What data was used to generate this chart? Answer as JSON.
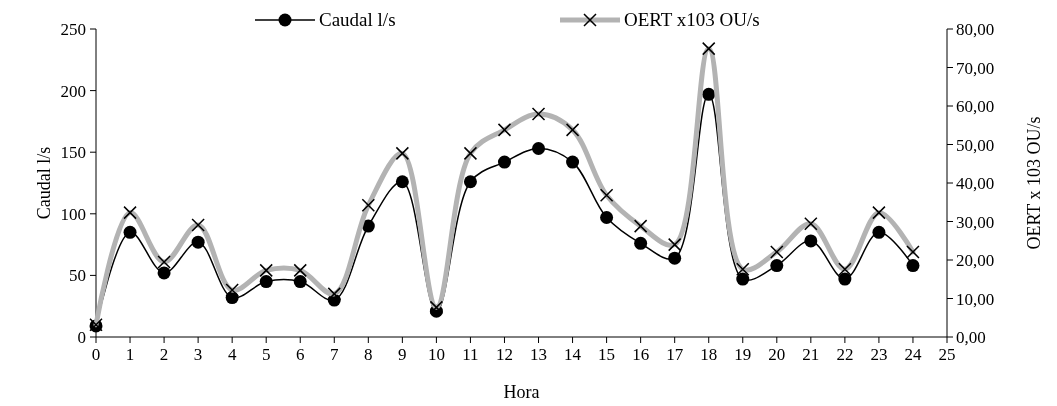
{
  "chart_data": {
    "type": "line",
    "xlabel": "Hora",
    "ylabel": "Caudal l/s",
    "y2label": "OERT x 103 OU/s",
    "x": [
      0,
      1,
      2,
      3,
      4,
      5,
      6,
      7,
      8,
      9,
      10,
      11,
      12,
      13,
      14,
      15,
      16,
      17,
      18,
      19,
      20,
      21,
      22,
      23,
      24
    ],
    "xlim": [
      0,
      25
    ],
    "xticks": [
      0,
      1,
      2,
      3,
      4,
      5,
      6,
      7,
      8,
      9,
      10,
      11,
      12,
      13,
      14,
      15,
      16,
      17,
      18,
      19,
      20,
      21,
      22,
      23,
      24,
      25
    ],
    "ylim": [
      0,
      250
    ],
    "yticks": [
      0,
      50,
      100,
      150,
      200,
      250
    ],
    "y2lim": [
      0,
      80
    ],
    "y2ticks": [
      {
        "value": 0,
        "label": "0,00"
      },
      {
        "value": 10,
        "label": "10,00"
      },
      {
        "value": 20,
        "label": "20,00"
      },
      {
        "value": 30,
        "label": "30,00"
      },
      {
        "value": 40,
        "label": "40,00"
      },
      {
        "value": 50,
        "label": "50,00"
      },
      {
        "value": 60,
        "label": "60,00"
      },
      {
        "value": 70,
        "label": "70,00"
      },
      {
        "value": 80,
        "label": "80,00"
      }
    ],
    "legend": "top",
    "grid": false,
    "series": [
      {
        "name": "Caudal l/s",
        "color": "#000000",
        "marker": "circle",
        "values": [
          9,
          85,
          52,
          77,
          32,
          45,
          45,
          30,
          90,
          126,
          21,
          126,
          142,
          153,
          142,
          97,
          76,
          64,
          197,
          47,
          58,
          78,
          47,
          85,
          58
        ]
      },
      {
        "name": "OERT x103 OU/s",
        "color": "#b3b3b3",
        "marker": "cross",
        "axis": "y2",
        "values": [
          3.2,
          32.3,
          19.5,
          29.1,
          12.2,
          17.3,
          17.3,
          11.2,
          34.2,
          47.7,
          7.7,
          47.7,
          53.8,
          57.9,
          53.8,
          36.8,
          28.8,
          24,
          74.9,
          17.6,
          22.1,
          29.4,
          17.6,
          32.3,
          22.1
        ]
      }
    ]
  }
}
